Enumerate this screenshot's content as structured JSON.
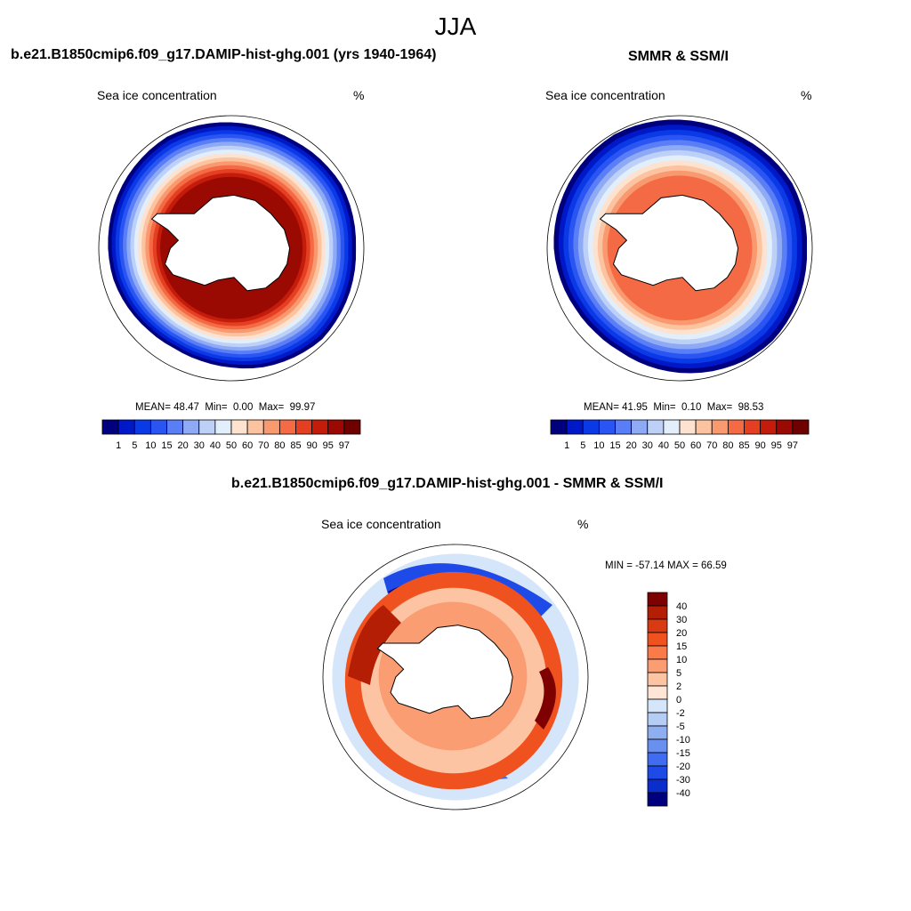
{
  "figure": {
    "season": "JJA",
    "left_title": "b.e21.B1850cmip6.f09_g17.DAMIP-hist-ghg.001 (yrs 1940-1964)",
    "right_title": "SMMR & SSM/I",
    "bottom_title": "b.e21.B1850cmip6.f09_g17.DAMIP-hist-ghg.001 - SMMR & SSM/I"
  },
  "chart_data": [
    {
      "type": "heatmap",
      "panel": "model",
      "variable_label": "Sea ice concentration",
      "units": "%",
      "stats": {
        "mean_label": "MEAN=",
        "mean": "48.47",
        "min_label": "Min=",
        "min": "0.00",
        "max_label": "Max=",
        "max": "99.97"
      },
      "levels": [
        "1",
        "5",
        "10",
        "15",
        "20",
        "30",
        "40",
        "50",
        "60",
        "70",
        "80",
        "85",
        "90",
        "95",
        "97"
      ],
      "colors": [
        "#00007f",
        "#0019c8",
        "#0a3ae6",
        "#2b55f2",
        "#5a7ef5",
        "#8faaf5",
        "#bdd0f7",
        "#e3eefb",
        "#fde3cf",
        "#fcc3a1",
        "#f9996f",
        "#f36a45",
        "#e43f22",
        "#c41c0b",
        "#9a0a02",
        "#6f0000"
      ],
      "ice_edge_profile": [
        0.94,
        0.95,
        0.96,
        0.97,
        0.95,
        0.93,
        0.9,
        0.88,
        0.87,
        0.88,
        0.9,
        0.92,
        0.93,
        0.94,
        0.95,
        0.96,
        0.97,
        0.96,
        0.95,
        0.94,
        0.94,
        0.95,
        0.96,
        0.95
      ],
      "core_level": 14
    },
    {
      "type": "heatmap",
      "panel": "observations",
      "variable_label": "Sea ice concentration",
      "units": "%",
      "stats": {
        "mean_label": "MEAN=",
        "mean": "41.95",
        "min_label": "Min=",
        "min": "0.10",
        "max_label": "Max=",
        "max": "98.53"
      },
      "levels": [
        "1",
        "5",
        "10",
        "15",
        "20",
        "30",
        "40",
        "50",
        "60",
        "70",
        "80",
        "85",
        "90",
        "95",
        "97"
      ],
      "colors": [
        "#00007f",
        "#0019c8",
        "#0a3ae6",
        "#2b55f2",
        "#5a7ef5",
        "#8faaf5",
        "#bdd0f7",
        "#e3eefb",
        "#fde3cf",
        "#fcc3a1",
        "#f9996f",
        "#f36a45",
        "#e43f22",
        "#c41c0b",
        "#9a0a02",
        "#6f0000"
      ],
      "ice_edge_profile": [
        0.96,
        0.97,
        0.98,
        0.99,
        0.98,
        0.96,
        0.94,
        0.92,
        0.9,
        0.9,
        0.91,
        0.93,
        0.95,
        0.96,
        0.97,
        0.98,
        0.99,
        0.98,
        0.97,
        0.96,
        0.96,
        0.97,
        0.98,
        0.97
      ],
      "core_level": 11
    },
    {
      "type": "heatmap",
      "panel": "difference",
      "variable_label": "Sea ice concentration",
      "units": "%",
      "stats_text": "MIN = -57.14 MAX =  66.59",
      "stats": {
        "min": -57.14,
        "max": 66.59
      },
      "levels": [
        "40",
        "30",
        "20",
        "15",
        "10",
        "5",
        "2",
        "0",
        "-2",
        "-5",
        "-10",
        "-15",
        "-20",
        "-30",
        "-40"
      ],
      "colors": [
        "#7f0000",
        "#b31e04",
        "#d93a12",
        "#f0521f",
        "#fa7a4a",
        "#fb9d73",
        "#fdc4a3",
        "#fee5d6",
        "#d6e6fa",
        "#b3cdf5",
        "#8eaef2",
        "#6a90ef",
        "#3f6cf0",
        "#1e4ae8",
        "#0a2dcc",
        "#00007f"
      ]
    }
  ]
}
